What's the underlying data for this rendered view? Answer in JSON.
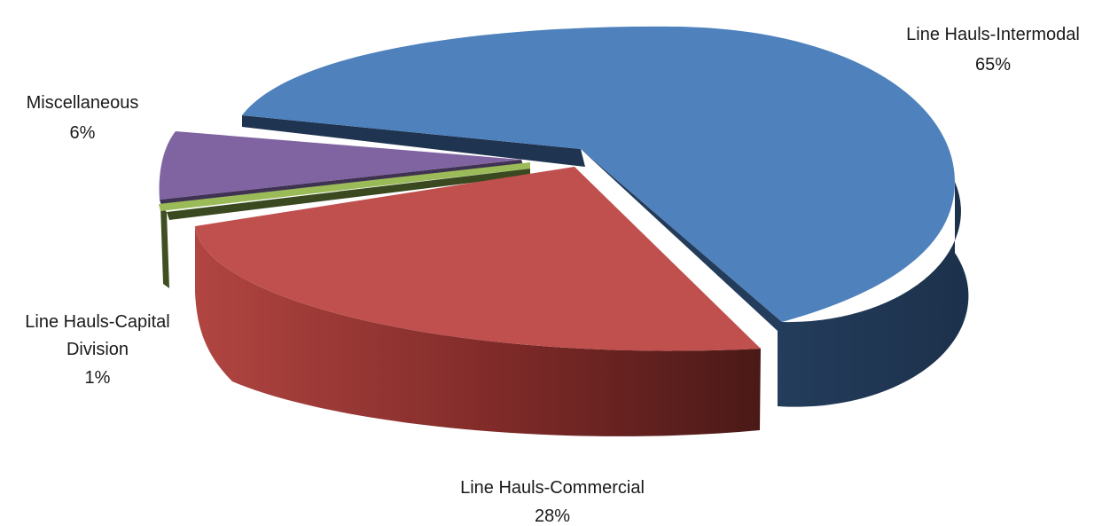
{
  "chart_data": {
    "type": "pie",
    "three_d": true,
    "exploded": true,
    "title": "",
    "legend": "none",
    "slices": [
      {
        "label": "Line Hauls-Intermodal",
        "value": 65,
        "value_label": "65%",
        "color": "#4f81bd"
      },
      {
        "label": "Line Hauls-Commercial",
        "value": 28,
        "value_label": "28%",
        "color": "#c0504d"
      },
      {
        "label": "Line Hauls-Capital Division",
        "label_lines": [
          "Line Hauls-Capital",
          "Division"
        ],
        "value": 1,
        "value_label": "1%",
        "color": "#9bbb59"
      },
      {
        "label": "Miscellaneous",
        "value": 6,
        "value_label": "6%",
        "color": "#8064a2"
      }
    ]
  }
}
